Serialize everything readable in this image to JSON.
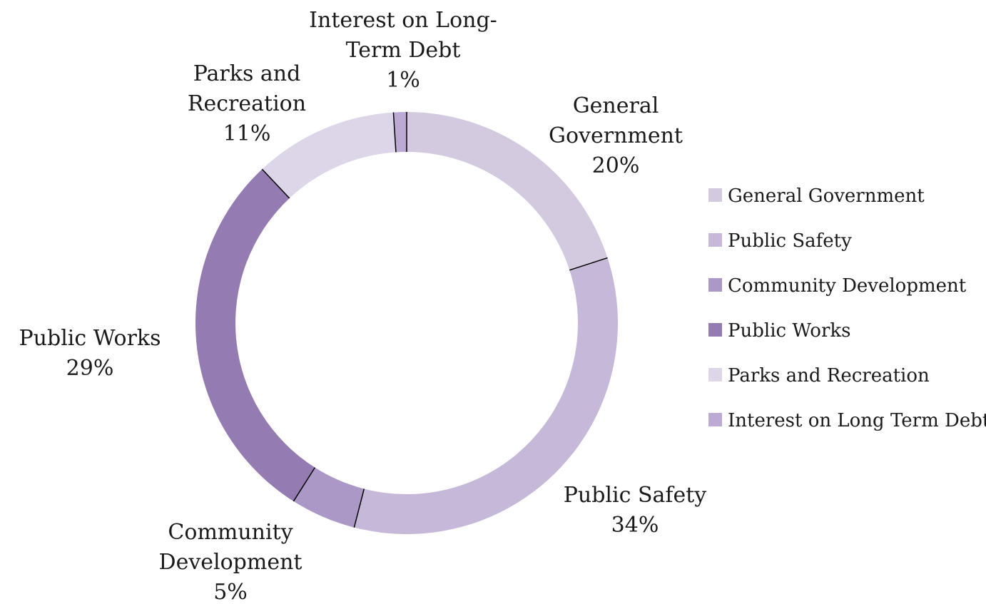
{
  "chart_data": {
    "type": "pie",
    "donut": true,
    "title": "",
    "slices": [
      {
        "label_lines": [
          "General",
          "Government"
        ],
        "legend": "General Government",
        "value": 20,
        "pct_text": "20%",
        "color": "#d3cae0"
      },
      {
        "label_lines": [
          "Public Safety"
        ],
        "legend": "Public Safety",
        "value": 34,
        "pct_text": "34%",
        "color": "#c6b8d8"
      },
      {
        "label_lines": [
          "Community",
          "Development"
        ],
        "legend": "Community Development",
        "value": 5,
        "pct_text": "5%",
        "color": "#ab98c6"
      },
      {
        "label_lines": [
          "Public Works"
        ],
        "legend": "Public Works",
        "value": 29,
        "pct_text": "29%",
        "color": "#947cb2"
      },
      {
        "label_lines": [
          "Parks and",
          "Recreation"
        ],
        "legend": "Parks and Recreation",
        "value": 11,
        "pct_text": "11%",
        "color": "#ddd6e8"
      },
      {
        "label_lines": [
          "Interest on Long-",
          "Term Debt"
        ],
        "legend": "Interest on Long Term Debt",
        "value": 1,
        "pct_text": "1%",
        "color": "#bcaad4"
      }
    ],
    "legend_position": "right"
  }
}
